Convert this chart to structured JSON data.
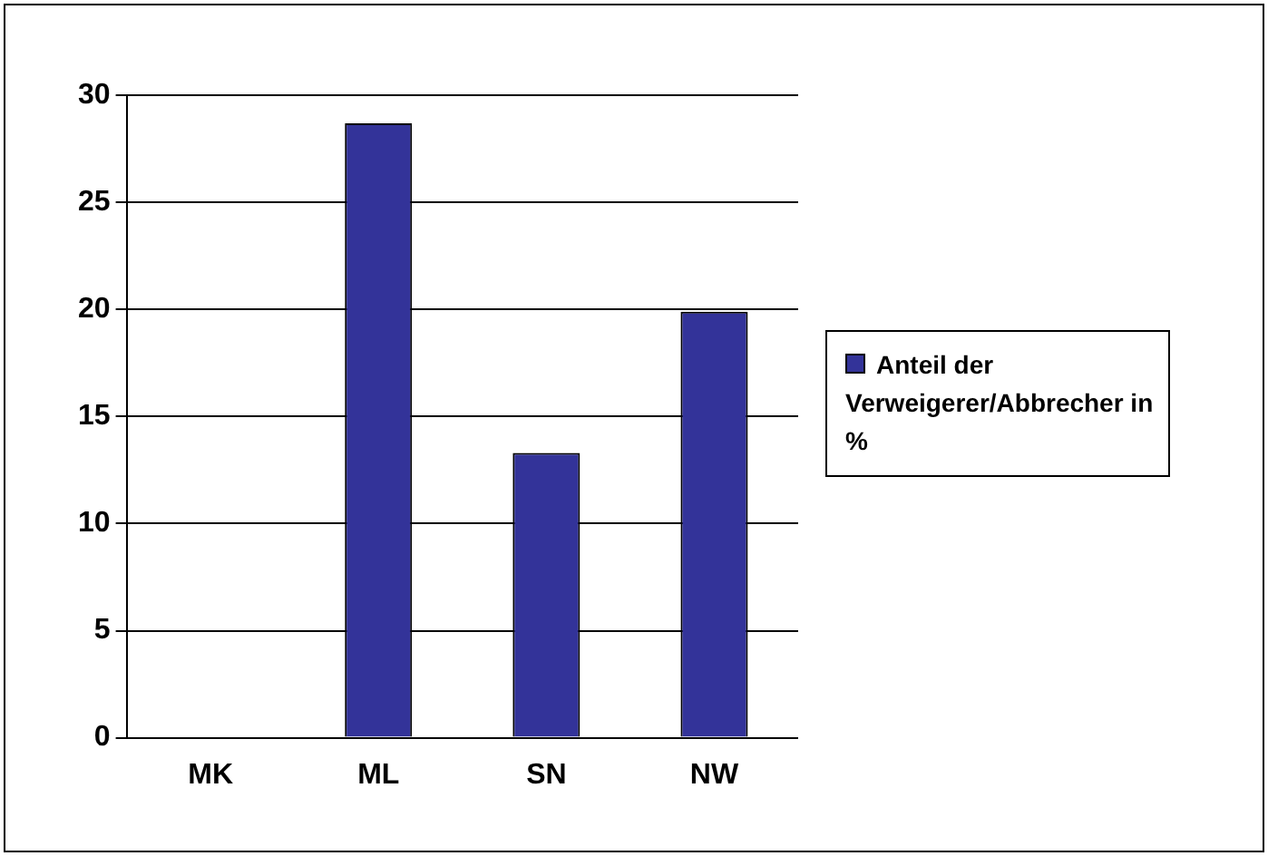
{
  "chart_data": {
    "type": "bar",
    "categories": [
      "MK",
      "ML",
      "SN",
      "NW"
    ],
    "series": [
      {
        "name": "Anteil der Verweigerer/Abbrecher in %",
        "color": "#333399",
        "values": [
          0,
          28.7,
          13.3,
          19.9
        ]
      }
    ],
    "ylim": [
      0,
      30
    ],
    "yticks": [
      0,
      5,
      10,
      15,
      20,
      25,
      30
    ],
    "grid": "y",
    "legend": "right"
  }
}
